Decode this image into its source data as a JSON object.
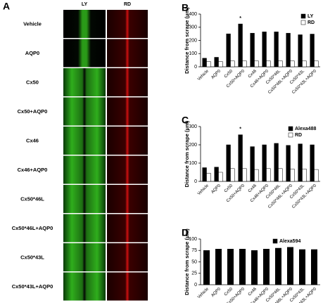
{
  "panel_a": {
    "label": "A",
    "columns": [
      "LY",
      "RD"
    ],
    "rows": [
      "Vehicle",
      "AQP0",
      "Cx50",
      "Cx50+AQP0",
      "Cx46",
      "Cx46+AQP0",
      "Cx50*46L",
      "Cx50*46L+AQP0",
      "Cx50*43L",
      "Cx50*43L+AQP0"
    ]
  },
  "chart_data": [
    {
      "type": "bar",
      "panel": "B",
      "ylabel": "Distance from scrape (μm)",
      "categories": [
        "Vehicle",
        "AQP0",
        "Cx50",
        "Cx50+AQP0",
        "Cx46",
        "Cx46+AQP0",
        "Cx50*46L",
        "Cx50*46L+AQP0",
        "Cx50*43L",
        "Cx50*43L+AQP0"
      ],
      "series": [
        {
          "name": "LY",
          "color": "#000000",
          "values": [
            65,
            72,
            250,
            325,
            255,
            265,
            265,
            255,
            243,
            248
          ]
        },
        {
          "name": "RD",
          "color": "#ffffff",
          "values": [
            40,
            40,
            45,
            45,
            45,
            45,
            45,
            45,
            45,
            45
          ]
        }
      ],
      "ylim": [
        0,
        400
      ],
      "yticks": [
        0,
        100,
        200,
        300,
        400
      ],
      "annotations": [
        {
          "text": "*",
          "x": "Cx50+AQP0"
        }
      ]
    },
    {
      "type": "bar",
      "panel": "C",
      "ylabel": "Distance from scrape (μm)",
      "categories": [
        "Vehicle",
        "AQP0",
        "Cx50",
        "Cx50+AQP0",
        "Cx46",
        "Cx46+AQP0",
        "Cx50*46L",
        "Cx50*46L+AQP0",
        "Cx50*43L",
        "Cx50*43L+AQP0"
      ],
      "series": [
        {
          "name": "Alexa488",
          "color": "#000000",
          "values": [
            75,
            78,
            200,
            255,
            190,
            200,
            208,
            197,
            205,
            200
          ]
        },
        {
          "name": "RD",
          "color": "#ffffff",
          "values": [
            45,
            50,
            70,
            70,
            65,
            70,
            70,
            68,
            68,
            65
          ]
        }
      ],
      "ylim": [
        0,
        300
      ],
      "yticks": [
        0,
        100,
        200,
        300
      ],
      "annotations": [
        {
          "text": "*",
          "x": "Cx50+AQP0"
        }
      ]
    },
    {
      "type": "bar",
      "panel": "D",
      "ylabel": "Distance from scrape (μm)",
      "categories": [
        "Vehicle",
        "AQP0",
        "Cx50",
        "Cx50+AQP0",
        "Cx46",
        "Cx46+AQP0",
        "Cx50*46L",
        "Cx50*46L+AQP0",
        "Cx50*43L",
        "Cx50*43L+AQP0"
      ],
      "series": [
        {
          "name": "Alexa594",
          "color": "#000000",
          "values": [
            75,
            78,
            78,
            78,
            75,
            78,
            80,
            82,
            77,
            77
          ]
        }
      ],
      "ylim": [
        0,
        100
      ],
      "yticks": [
        0,
        25,
        50,
        75,
        100
      ]
    }
  ]
}
